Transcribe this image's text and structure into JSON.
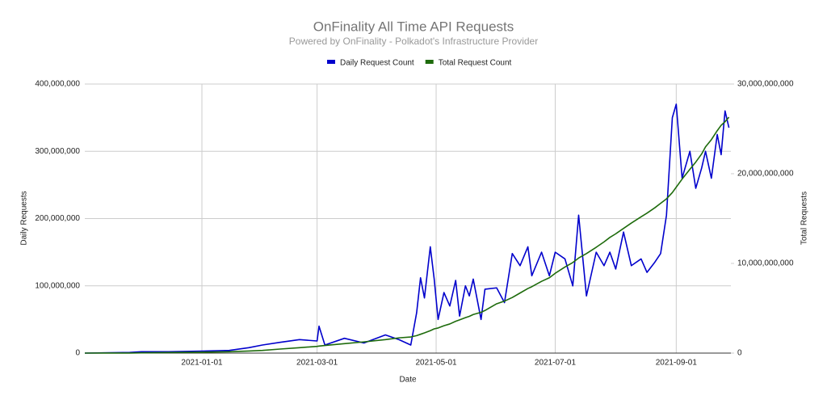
{
  "chart_data": {
    "type": "line",
    "title": "OnFinality All Time API Requests",
    "subtitle": "Powered by OnFinality - Polkadot's Infrastructure Provider",
    "x_label": "Date",
    "y_label": "Daily Requests",
    "y2_label": "Total Requests",
    "x": [
      "2020-11-02",
      "2020-11-25",
      "2020-12-01",
      "2020-12-15",
      "2021-01-01",
      "2021-01-15",
      "2021-01-25",
      "2021-02-01",
      "2021-02-10",
      "2021-02-20",
      "2021-03-01",
      "2021-03-02",
      "2021-03-05",
      "2021-03-15",
      "2021-03-25",
      "2021-04-05",
      "2021-04-12",
      "2021-04-18",
      "2021-04-21",
      "2021-04-23",
      "2021-04-25",
      "2021-04-28",
      "2021-04-30",
      "2021-05-02",
      "2021-05-05",
      "2021-05-08",
      "2021-05-11",
      "2021-05-13",
      "2021-05-16",
      "2021-05-18",
      "2021-05-20",
      "2021-05-24",
      "2021-05-26",
      "2021-06-01",
      "2021-06-05",
      "2021-06-09",
      "2021-06-13",
      "2021-06-17",
      "2021-06-19",
      "2021-06-24",
      "2021-06-28",
      "2021-07-01",
      "2021-07-06",
      "2021-07-10",
      "2021-07-13",
      "2021-07-17",
      "2021-07-22",
      "2021-07-26",
      "2021-07-29",
      "2021-08-01",
      "2021-08-05",
      "2021-08-09",
      "2021-08-14",
      "2021-08-17",
      "2021-08-21",
      "2021-08-24",
      "2021-08-27",
      "2021-08-30",
      "2021-09-01",
      "2021-09-04",
      "2021-09-08",
      "2021-09-11",
      "2021-09-14",
      "2021-09-16",
      "2021-09-19",
      "2021-09-22",
      "2021-09-24",
      "2021-09-26",
      "2021-09-28"
    ],
    "series": [
      {
        "name": "Daily Request Count",
        "color": "#0000cc",
        "values": [
          0,
          1000000,
          2000000,
          2000000,
          3000000,
          4000000,
          8000000,
          12000000,
          16000000,
          20000000,
          18000000,
          40000000,
          12000000,
          22000000,
          15000000,
          27000000,
          20000000,
          12000000,
          60000000,
          112000000,
          82000000,
          158000000,
          110000000,
          50000000,
          90000000,
          70000000,
          108000000,
          55000000,
          100000000,
          85000000,
          110000000,
          50000000,
          95000000,
          97000000,
          75000000,
          148000000,
          130000000,
          158000000,
          115000000,
          150000000,
          115000000,
          150000000,
          140000000,
          100000000,
          205000000,
          85000000,
          150000000,
          130000000,
          150000000,
          125000000,
          180000000,
          130000000,
          140000000,
          120000000,
          135000000,
          148000000,
          205000000,
          350000000,
          370000000,
          260000000,
          300000000,
          245000000,
          275000000,
          300000000,
          260000000,
          325000000,
          295000000,
          360000000,
          335000000
        ]
      },
      {
        "name": "Total Request Count",
        "color": "#1e6b0c",
        "axis": "y2",
        "values": [
          0,
          10000000,
          30000000,
          60000000,
          100000000,
          150000000,
          230000000,
          300000000,
          450000000,
          600000000,
          750000000,
          780000000,
          850000000,
          1050000000,
          1250000000,
          1500000000,
          1700000000,
          1800000000,
          1950000000,
          2100000000,
          2250000000,
          2500000000,
          2700000000,
          2800000000,
          3050000000,
          3250000000,
          3550000000,
          3700000000,
          3950000000,
          4100000000,
          4300000000,
          4550000000,
          4750000000,
          5500000000,
          5800000000,
          6200000000,
          6700000000,
          7200000000,
          7400000000,
          8000000000,
          8400000000,
          8900000000,
          9600000000,
          10100000000,
          10600000000,
          11100000000,
          11800000000,
          12400000000,
          12900000000,
          13300000000,
          13900000000,
          14500000000,
          15200000000,
          15600000000,
          16200000000,
          16700000000,
          17200000000,
          17900000000,
          18500000000,
          19400000000,
          20500000000,
          21300000000,
          22200000000,
          23000000000,
          23800000000,
          24800000000,
          25400000000,
          25800000000,
          26300000000
        ]
      }
    ],
    "xlim": [
      "2020-11-02",
      "2021-09-29"
    ],
    "xticks": [
      "2021-01-01",
      "2021-03-01",
      "2021-05-01",
      "2021-07-01",
      "2021-09-01"
    ],
    "ylim": [
      0,
      400000000
    ],
    "yticks": [
      0,
      {
        "value": 100000000,
        "label": "100,000,000"
      },
      {
        "value": 200000000,
        "label": "200,000,000"
      },
      {
        "value": 300000000,
        "label": "300,000,000"
      },
      {
        "value": 400000000,
        "label": "400,000,000"
      }
    ],
    "y2lim": [
      0,
      30000000000
    ],
    "y2ticks": [
      0,
      {
        "value": 10000000000,
        "label": "10,000,000,000"
      },
      {
        "value": 20000000000,
        "label": "20,000,000,000"
      },
      {
        "value": 30000000000,
        "label": "30,000,000,000"
      }
    ],
    "grid": true,
    "legend": "top"
  }
}
